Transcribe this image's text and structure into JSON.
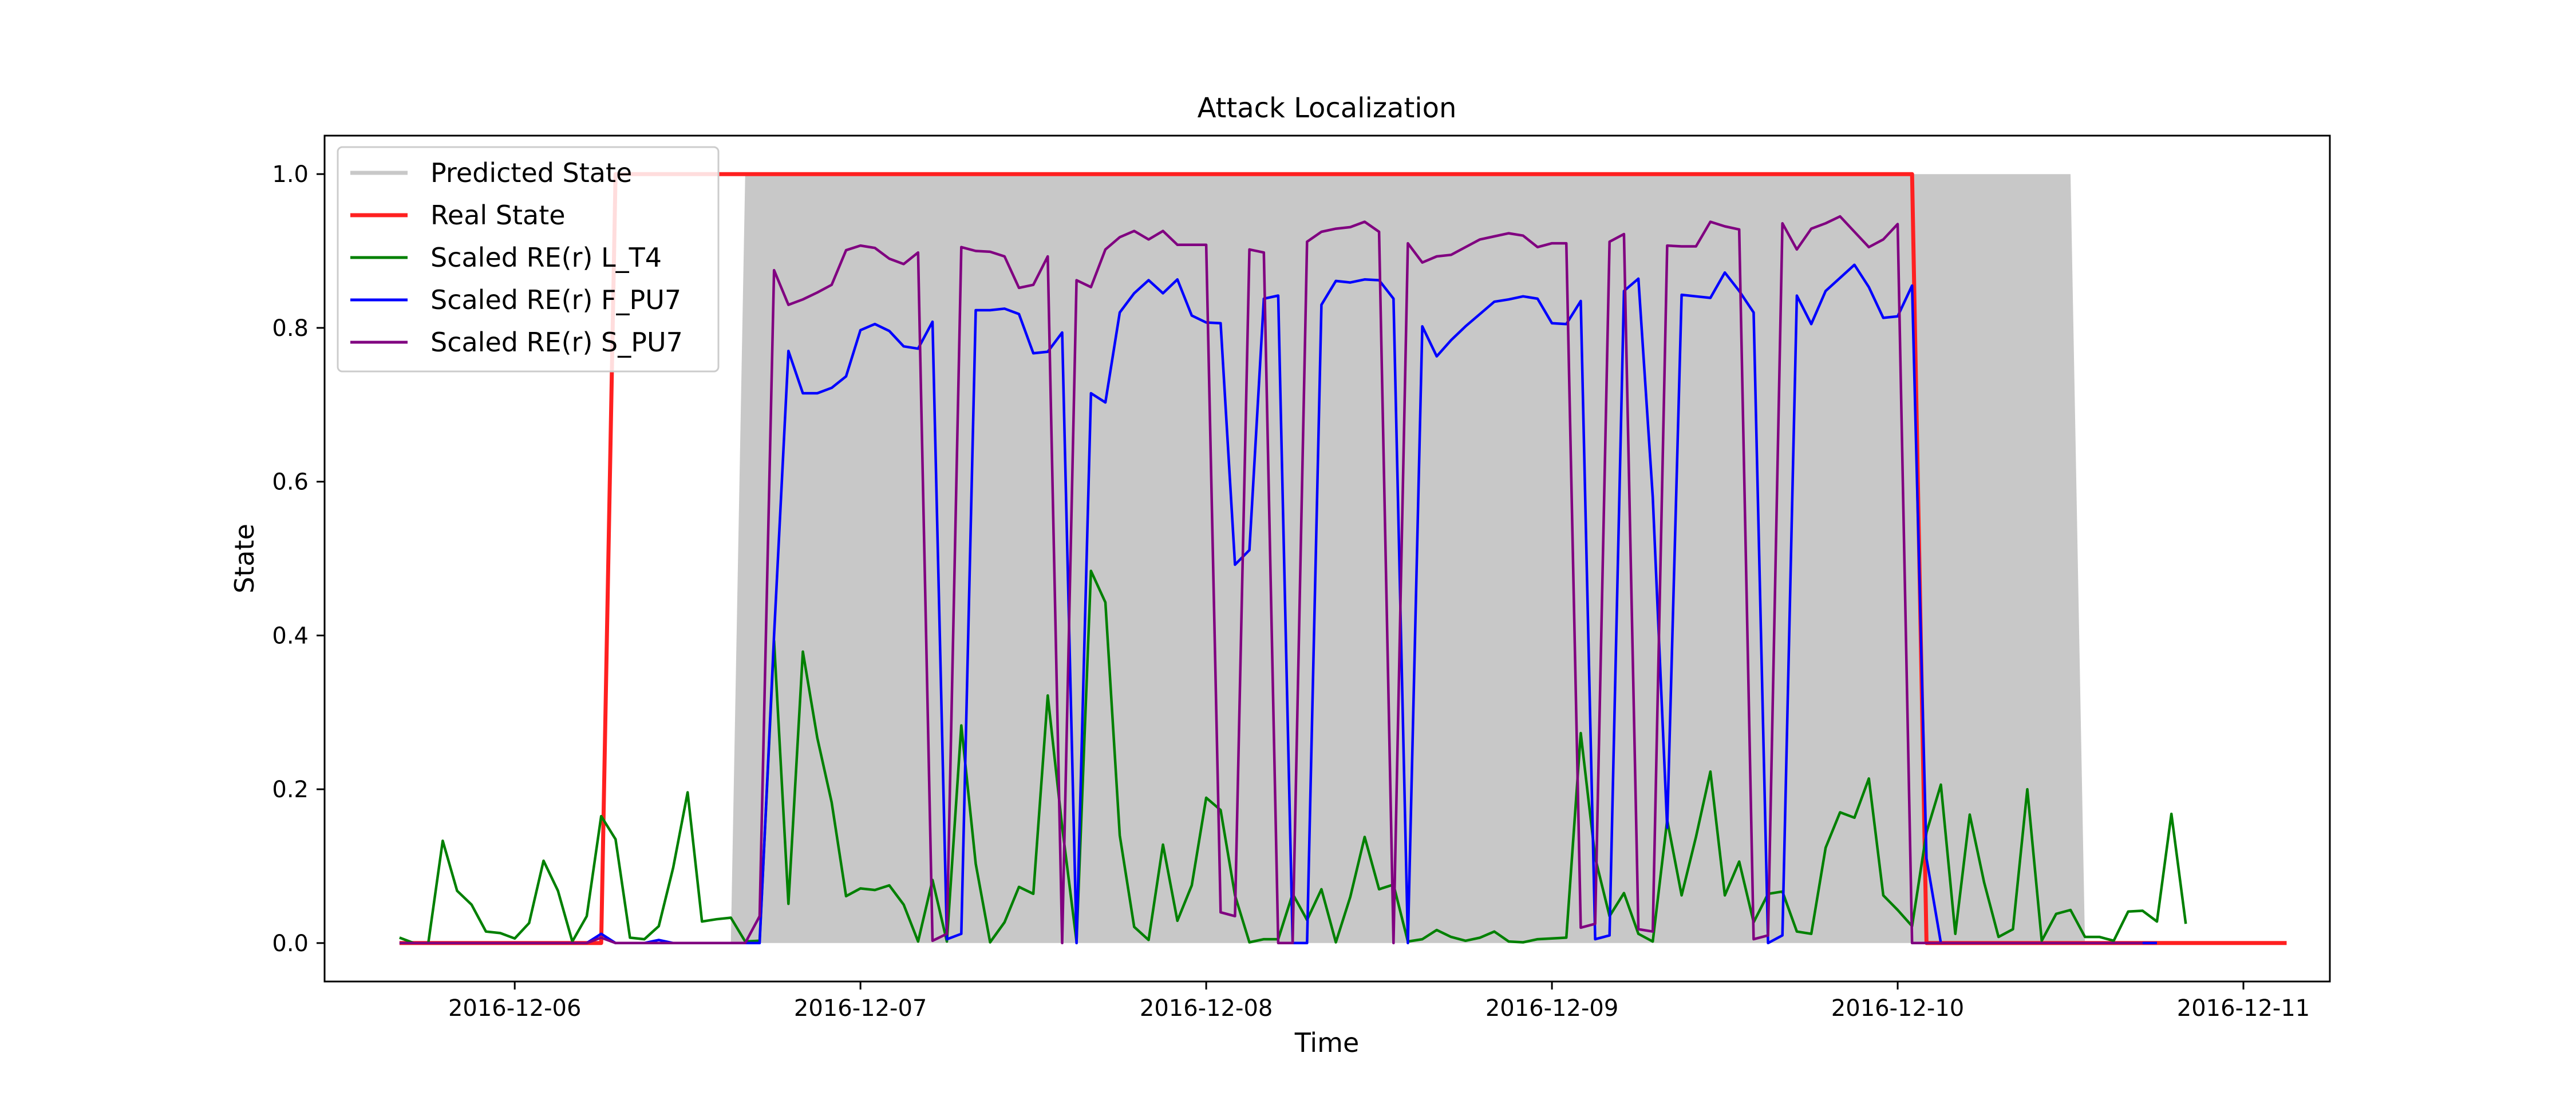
{
  "chart_data": {
    "type": "line",
    "title": "Attack Localization",
    "xlabel": "Time",
    "ylabel": "State",
    "xlim": [
      "2016-12-05 10:48",
      "2016-12-11 06:00"
    ],
    "ylim": [
      -0.05,
      1.05
    ],
    "x_ticks": [
      "2016-12-06",
      "2016-12-07",
      "2016-12-08",
      "2016-12-09",
      "2016-12-10",
      "2016-12-11"
    ],
    "y_ticks": [
      "0.0",
      "0.2",
      "0.4",
      "0.6",
      "0.8",
      "1.0"
    ],
    "grid": false,
    "legend_position": "top-left",
    "legend": [
      {
        "label": "Predicted State",
        "color": "#c8c8c8"
      },
      {
        "label": "Real State",
        "color": "#ff2020"
      },
      {
        "label": "Scaled RE(r) L_T4",
        "color": "#008000"
      },
      {
        "label": "Scaled RE(r) F_PU7",
        "color": "#0000ff"
      },
      {
        "label": "Scaled RE(r) S_PU7",
        "color": "#800080"
      }
    ],
    "start": "2016-12-05T16:00",
    "step_hours": 1,
    "predicted_state": {
      "name": "Predicted State",
      "color": "#c8c8c8",
      "type": "area",
      "x": [
        "2016-12-05T16:00",
        "2016-12-06T15:00",
        "2016-12-06T16:00",
        "2016-12-10T12:00",
        "2016-12-10T13:00",
        "2016-12-11T03:00"
      ],
      "y": [
        0,
        0,
        1,
        1,
        0,
        0
      ]
    },
    "real_state": {
      "name": "Real State",
      "color": "#ff2020",
      "x": [
        "2016-12-05T16:00",
        "2016-12-06T06:00",
        "2016-12-06T07:00",
        "2016-12-10T01:00",
        "2016-12-10T02:00",
        "2016-12-11T03:00"
      ],
      "y": [
        0,
        0,
        1,
        1,
        0,
        0
      ]
    },
    "series": [
      {
        "name": "Scaled RE(r) L_T4",
        "color": "#008000",
        "values": [
          0.007,
          0,
          0,
          0.133,
          0.068,
          0.05,
          0.015,
          0.013,
          0.006,
          0.026,
          0.107,
          0.068,
          0.002,
          0.035,
          0.165,
          0.135,
          0.007,
          0.005,
          0.022,
          0.098,
          0.196,
          0.028,
          0.031,
          0.033,
          0.002,
          0.003,
          0.393,
          0.051,
          0.379,
          0.267,
          0.183,
          0.061,
          0.071,
          0.069,
          0.075,
          0.05,
          0.002,
          0.082,
          0.002,
          0.283,
          0.103,
          0.001,
          0.027,
          0.073,
          0.064,
          0.322,
          0.151,
          0.002,
          0.484,
          0.443,
          0.14,
          0.021,
          0.004,
          0.128,
          0.029,
          0.075,
          0.189,
          0.173,
          0.062,
          0.001,
          0.005,
          0.005,
          0.064,
          0.03,
          0.07,
          0.001,
          0.06,
          0.138,
          0.07,
          0.076,
          0.002,
          0.005,
          0.017,
          0.008,
          0.003,
          0.007,
          0.015,
          0.002,
          0.001,
          0.005,
          0.006,
          0.007,
          0.273,
          0.111,
          0.035,
          0.065,
          0.012,
          0.002,
          0.16,
          0.062,
          0.138,
          0.223,
          0.062,
          0.106,
          0.027,
          0.064,
          0.067,
          0.015,
          0.012,
          0.124,
          0.17,
          0.163,
          0.214,
          0.062,
          0.043,
          0.022,
          0.144,
          0.206,
          0.012,
          0.167,
          0.079,
          0.008,
          0.018,
          0.2,
          0.003,
          0.038,
          0.043,
          0.008,
          0.008,
          0.003,
          0.041,
          0.042,
          0.028,
          0.168,
          0.025
        ]
      },
      {
        "name": "Scaled RE(r) F_PU7",
        "color": "#0000ff",
        "values": [
          0,
          0,
          0,
          0,
          0,
          0,
          0,
          0,
          0,
          0,
          0,
          0,
          0,
          0,
          0.012,
          0,
          0,
          0,
          0.004,
          0,
          0,
          0,
          0,
          0,
          0,
          0,
          0.4,
          0.77,
          0.715,
          0.715,
          0.722,
          0.737,
          0.797,
          0.805,
          0.796,
          0.776,
          0.773,
          0.808,
          0.005,
          0.012,
          0.823,
          0.823,
          0.825,
          0.818,
          0.767,
          0.769,
          0.794,
          0,
          0.715,
          0.703,
          0.82,
          0.845,
          0.862,
          0.845,
          0.863,
          0.816,
          0.807,
          0.806,
          0.492,
          0.511,
          0.838,
          0.842,
          0,
          0,
          0.83,
          0.861,
          0.859,
          0.863,
          0.862,
          0.838,
          0,
          0.802,
          0.763,
          0.784,
          0.802,
          0.818,
          0.834,
          0.837,
          0.841,
          0.838,
          0.806,
          0.805,
          0.835,
          0.005,
          0.01,
          0.848,
          0.864,
          0.58,
          0.15,
          0.843,
          0.841,
          0.839,
          0.872,
          0.848,
          0.82,
          0,
          0.01,
          0.842,
          0.805,
          0.848,
          0.865,
          0.882,
          0.853,
          0.813,
          0.815,
          0.855,
          0.11,
          0,
          0,
          0,
          0,
          0,
          0,
          0,
          0,
          0,
          0,
          0,
          0,
          0,
          0,
          0,
          0
        ]
      },
      {
        "name": "Scaled RE(r) S_PU7",
        "color": "#800080",
        "values": [
          0,
          0,
          0,
          0,
          0,
          0,
          0,
          0,
          0,
          0,
          0,
          0,
          0,
          0,
          0.007,
          0,
          0,
          0,
          0,
          0,
          0,
          0,
          0,
          0,
          0,
          0.035,
          0.875,
          0.83,
          0.837,
          0.846,
          0.856,
          0.901,
          0.907,
          0.904,
          0.89,
          0.883,
          0.898,
          0.003,
          0.012,
          0.905,
          0.9,
          0.899,
          0.893,
          0.852,
          0.856,
          0.893,
          0,
          0.862,
          0.853,
          0.902,
          0.918,
          0.926,
          0.915,
          0.926,
          0.908,
          0.908,
          0.908,
          0.04,
          0.035,
          0.902,
          0.898,
          0,
          0,
          0.912,
          0.925,
          0.929,
          0.931,
          0.938,
          0.925,
          0,
          0.91,
          0.885,
          0.893,
          0.895,
          0.905,
          0.915,
          0.919,
          0.923,
          0.92,
          0.905,
          0.91,
          0.91,
          0.02,
          0.025,
          0.912,
          0.922,
          0.018,
          0.015,
          0.907,
          0.906,
          0.906,
          0.938,
          0.932,
          0.928,
          0.005,
          0.01,
          0.936,
          0.902,
          0.929,
          0.936,
          0.945,
          0.925,
          0.905,
          0.915,
          0.935,
          0,
          0,
          0,
          0,
          0,
          0,
          0,
          0,
          0,
          0,
          0,
          0,
          0,
          0,
          0,
          0,
          0
        ]
      }
    ]
  }
}
